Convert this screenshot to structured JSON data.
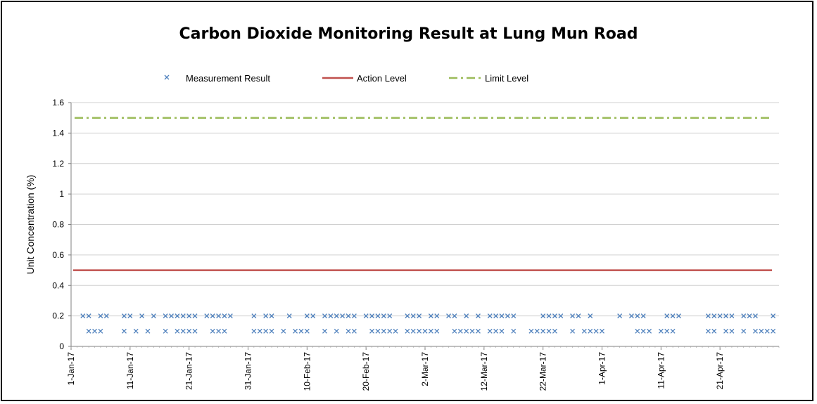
{
  "chart_data": {
    "type": "scatter",
    "title": "Carbon Dioxide Monitoring Result at Lung Mun Road",
    "xlabel": "",
    "ylabel": "Unit Concentration (%)",
    "ylim": [
      0,
      1.6
    ],
    "yticks": [
      "0",
      "0.2",
      "0.4",
      "0.6",
      "0.8",
      "1",
      "1.2",
      "1.4",
      "1.6"
    ],
    "xlim": [
      "2017-01-01",
      "2017-05-01"
    ],
    "xticks": [
      "1-Jan-17",
      "11-Jan-17",
      "21-Jan-17",
      "31-Jan-17",
      "10-Feb-17",
      "20-Feb-17",
      "2-Mar-17",
      "12-Mar-17",
      "22-Mar-17",
      "1-Apr-17",
      "11-Apr-17",
      "21-Apr-17"
    ],
    "grid": "horizontal",
    "legend_position": "top",
    "series": [
      {
        "name": "Measurement Result",
        "marker": "x",
        "color": "#4F81BD",
        "points": [
          [
            "2017-01-03",
            0.2
          ],
          [
            "2017-01-04",
            0.1
          ],
          [
            "2017-01-04",
            0.2
          ],
          [
            "2017-01-05",
            0.1
          ],
          [
            "2017-01-06",
            0.1
          ],
          [
            "2017-01-06",
            0.2
          ],
          [
            "2017-01-07",
            0.2
          ],
          [
            "2017-01-10",
            0.1
          ],
          [
            "2017-01-10",
            0.2
          ],
          [
            "2017-01-11",
            0.2
          ],
          [
            "2017-01-12",
            0.1
          ],
          [
            "2017-01-13",
            0.2
          ],
          [
            "2017-01-14",
            0.1
          ],
          [
            "2017-01-15",
            0.2
          ],
          [
            "2017-01-17",
            0.1
          ],
          [
            "2017-01-17",
            0.2
          ],
          [
            "2017-01-18",
            0.2
          ],
          [
            "2017-01-19",
            0.1
          ],
          [
            "2017-01-19",
            0.2
          ],
          [
            "2017-01-20",
            0.1
          ],
          [
            "2017-01-20",
            0.2
          ],
          [
            "2017-01-21",
            0.1
          ],
          [
            "2017-01-21",
            0.2
          ],
          [
            "2017-01-22",
            0.1
          ],
          [
            "2017-01-22",
            0.2
          ],
          [
            "2017-01-24",
            0.2
          ],
          [
            "2017-01-25",
            0.1
          ],
          [
            "2017-01-25",
            0.2
          ],
          [
            "2017-01-26",
            0.1
          ],
          [
            "2017-01-26",
            0.2
          ],
          [
            "2017-01-27",
            0.1
          ],
          [
            "2017-01-27",
            0.2
          ],
          [
            "2017-01-28",
            0.2
          ],
          [
            "2017-02-01",
            0.1
          ],
          [
            "2017-02-01",
            0.2
          ],
          [
            "2017-02-02",
            0.1
          ],
          [
            "2017-02-03",
            0.1
          ],
          [
            "2017-02-03",
            0.2
          ],
          [
            "2017-02-04",
            0.1
          ],
          [
            "2017-02-04",
            0.2
          ],
          [
            "2017-02-06",
            0.1
          ],
          [
            "2017-02-07",
            0.2
          ],
          [
            "2017-02-08",
            0.1
          ],
          [
            "2017-02-09",
            0.1
          ],
          [
            "2017-02-10",
            0.1
          ],
          [
            "2017-02-10",
            0.2
          ],
          [
            "2017-02-11",
            0.2
          ],
          [
            "2017-02-13",
            0.1
          ],
          [
            "2017-02-13",
            0.2
          ],
          [
            "2017-02-14",
            0.2
          ],
          [
            "2017-02-15",
            0.1
          ],
          [
            "2017-02-15",
            0.2
          ],
          [
            "2017-02-16",
            0.2
          ],
          [
            "2017-02-17",
            0.1
          ],
          [
            "2017-02-17",
            0.2
          ],
          [
            "2017-02-18",
            0.1
          ],
          [
            "2017-02-18",
            0.2
          ],
          [
            "2017-02-20",
            0.2
          ],
          [
            "2017-02-21",
            0.1
          ],
          [
            "2017-02-21",
            0.2
          ],
          [
            "2017-02-22",
            0.1
          ],
          [
            "2017-02-22",
            0.2
          ],
          [
            "2017-02-23",
            0.1
          ],
          [
            "2017-02-23",
            0.2
          ],
          [
            "2017-02-24",
            0.1
          ],
          [
            "2017-02-24",
            0.2
          ],
          [
            "2017-02-25",
            0.1
          ],
          [
            "2017-02-27",
            0.1
          ],
          [
            "2017-02-27",
            0.2
          ],
          [
            "2017-02-28",
            0.1
          ],
          [
            "2017-02-28",
            0.2
          ],
          [
            "2017-03-01",
            0.1
          ],
          [
            "2017-03-01",
            0.2
          ],
          [
            "2017-03-02",
            0.1
          ],
          [
            "2017-03-03",
            0.1
          ],
          [
            "2017-03-03",
            0.2
          ],
          [
            "2017-03-04",
            0.1
          ],
          [
            "2017-03-04",
            0.2
          ],
          [
            "2017-03-06",
            0.2
          ],
          [
            "2017-03-07",
            0.1
          ],
          [
            "2017-03-07",
            0.2
          ],
          [
            "2017-03-08",
            0.1
          ],
          [
            "2017-03-09",
            0.1
          ],
          [
            "2017-03-09",
            0.2
          ],
          [
            "2017-03-10",
            0.1
          ],
          [
            "2017-03-11",
            0.1
          ],
          [
            "2017-03-11",
            0.2
          ],
          [
            "2017-03-13",
            0.1
          ],
          [
            "2017-03-13",
            0.2
          ],
          [
            "2017-03-14",
            0.1
          ],
          [
            "2017-03-14",
            0.2
          ],
          [
            "2017-03-15",
            0.1
          ],
          [
            "2017-03-15",
            0.2
          ],
          [
            "2017-03-16",
            0.2
          ],
          [
            "2017-03-17",
            0.1
          ],
          [
            "2017-03-17",
            0.2
          ],
          [
            "2017-03-20",
            0.1
          ],
          [
            "2017-03-21",
            0.1
          ],
          [
            "2017-03-22",
            0.1
          ],
          [
            "2017-03-22",
            0.2
          ],
          [
            "2017-03-23",
            0.1
          ],
          [
            "2017-03-23",
            0.2
          ],
          [
            "2017-03-24",
            0.1
          ],
          [
            "2017-03-24",
            0.2
          ],
          [
            "2017-03-25",
            0.2
          ],
          [
            "2017-03-27",
            0.1
          ],
          [
            "2017-03-27",
            0.2
          ],
          [
            "2017-03-28",
            0.2
          ],
          [
            "2017-03-29",
            0.1
          ],
          [
            "2017-03-30",
            0.1
          ],
          [
            "2017-03-30",
            0.2
          ],
          [
            "2017-03-31",
            0.1
          ],
          [
            "2017-04-01",
            0.1
          ],
          [
            "2017-04-04",
            0.2
          ],
          [
            "2017-04-06",
            0.2
          ],
          [
            "2017-04-07",
            0.1
          ],
          [
            "2017-04-07",
            0.2
          ],
          [
            "2017-04-08",
            0.1
          ],
          [
            "2017-04-08",
            0.2
          ],
          [
            "2017-04-09",
            0.1
          ],
          [
            "2017-04-11",
            0.1
          ],
          [
            "2017-04-12",
            0.1
          ],
          [
            "2017-04-12",
            0.2
          ],
          [
            "2017-04-13",
            0.1
          ],
          [
            "2017-04-13",
            0.2
          ],
          [
            "2017-04-14",
            0.2
          ],
          [
            "2017-04-19",
            0.1
          ],
          [
            "2017-04-19",
            0.2
          ],
          [
            "2017-04-20",
            0.1
          ],
          [
            "2017-04-20",
            0.2
          ],
          [
            "2017-04-21",
            0.2
          ],
          [
            "2017-04-22",
            0.1
          ],
          [
            "2017-04-22",
            0.2
          ],
          [
            "2017-04-23",
            0.1
          ],
          [
            "2017-04-23",
            0.2
          ],
          [
            "2017-04-25",
            0.1
          ],
          [
            "2017-04-25",
            0.2
          ],
          [
            "2017-04-26",
            0.2
          ],
          [
            "2017-04-27",
            0.1
          ],
          [
            "2017-04-27",
            0.2
          ],
          [
            "2017-04-28",
            0.1
          ],
          [
            "2017-04-29",
            0.1
          ],
          [
            "2017-04-30",
            0.1
          ],
          [
            "2017-04-30",
            0.2
          ]
        ]
      },
      {
        "name": "Action Level",
        "line_style": "solid",
        "color": "#C0504D",
        "value": 0.5
      },
      {
        "name": "Limit Level",
        "line_style": "dash-dot",
        "color": "#9BBB59",
        "value": 1.5
      }
    ]
  }
}
